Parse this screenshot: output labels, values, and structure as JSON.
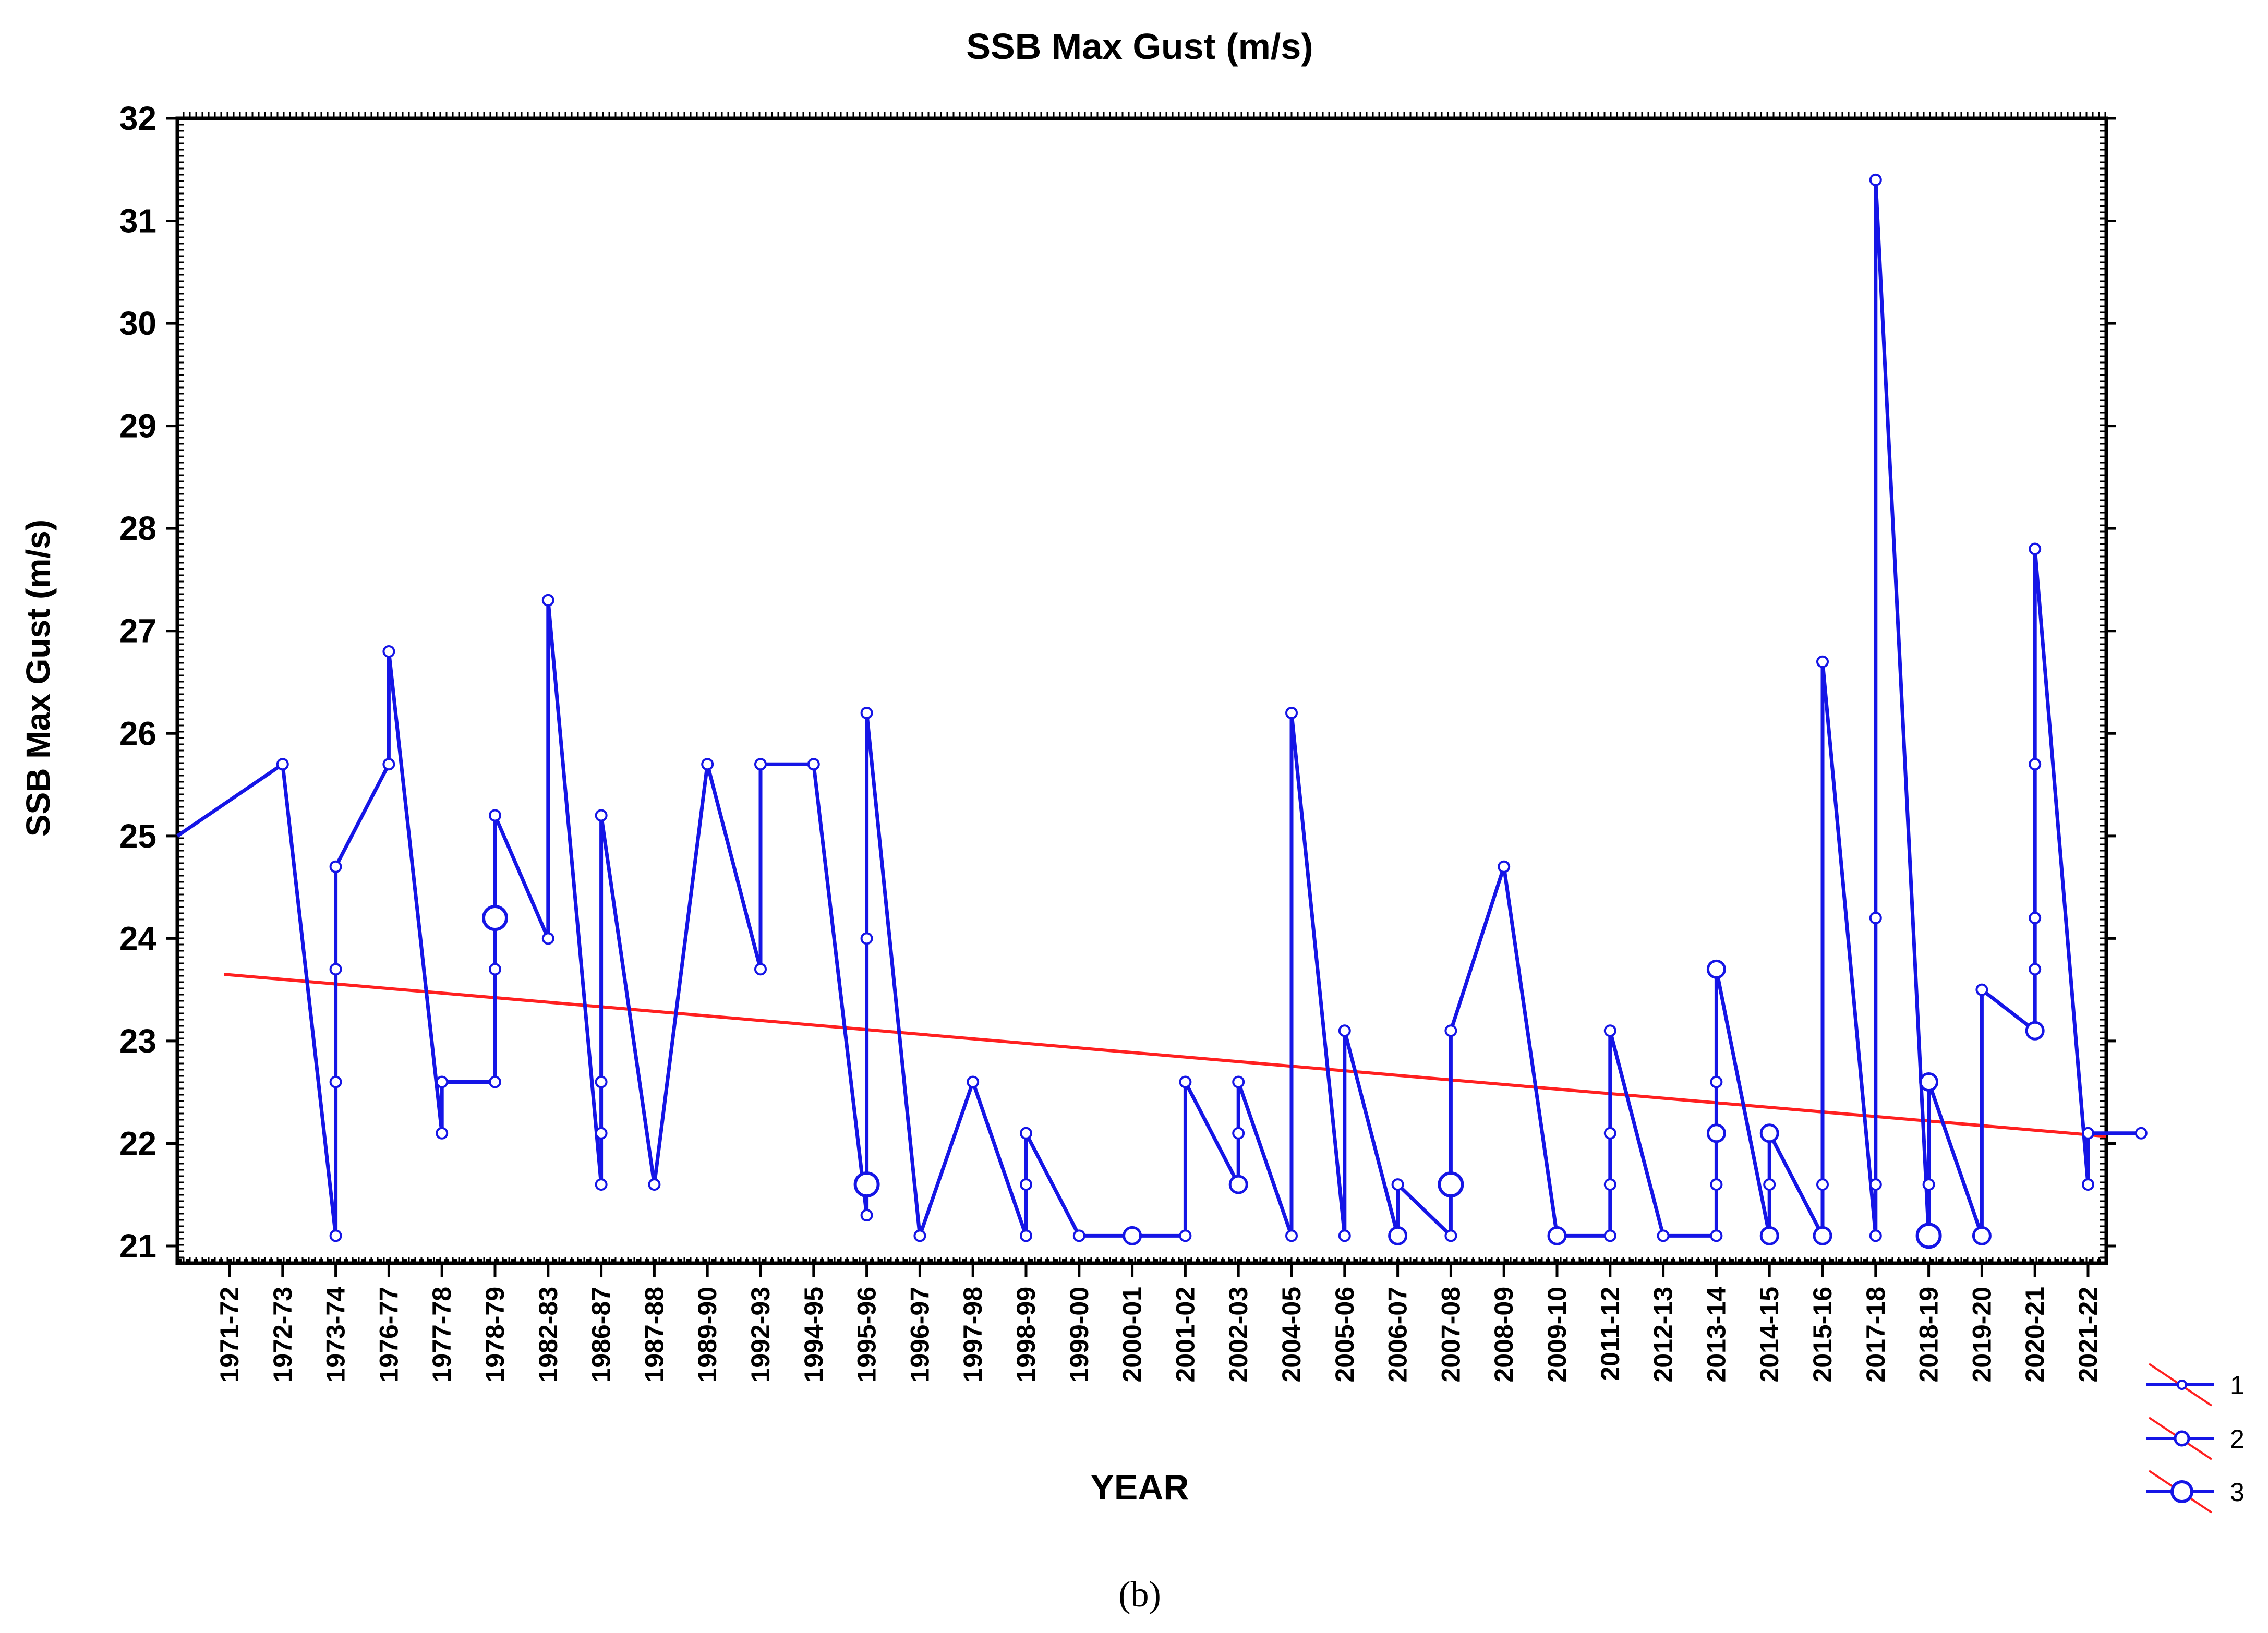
{
  "chart_data": {
    "type": "line",
    "title": "SSB Max Gust (m/s)",
    "xlabel": "YEAR",
    "ylabel": "SSB Max Gust (m/s)",
    "ylim": [
      21,
      32
    ],
    "yticks": [
      21,
      22,
      23,
      24,
      25,
      26,
      27,
      28,
      29,
      30,
      31,
      32
    ],
    "categories": [
      "1971-72",
      "1972-73",
      "1973-74",
      "1976-77",
      "1977-78",
      "1978-79",
      "1982-83",
      "1986-87",
      "1987-88",
      "1989-90",
      "1992-93",
      "1994-95",
      "1995-96",
      "1996-97",
      "1997-98",
      "1998-99",
      "1999-00",
      "2000-01",
      "2001-02",
      "2002-03",
      "2004-05",
      "2005-06",
      "2006-07",
      "2007-08",
      "2008-09",
      "2009-10",
      "2011-12",
      "2012-13",
      "2013-14",
      "2014-15",
      "2015-16",
      "2017-18",
      "2018-19",
      "2019-20",
      "2020-21",
      "2021-22"
    ],
    "series": [
      {
        "name": "SSB Max Gust",
        "color": "#1515e6",
        "points": [
          {
            "x": 0,
            "y": 25.0
          },
          {
            "x": 1,
            "y": 25.7
          },
          {
            "x": 2,
            "y": 21.1
          },
          {
            "x": 2,
            "y": 22.6
          },
          {
            "x": 2,
            "y": 23.7
          },
          {
            "x": 2,
            "y": 24.7
          },
          {
            "x": 3,
            "y": 25.7
          },
          {
            "x": 3,
            "y": 26.8
          },
          {
            "x": 4,
            "y": 22.1
          },
          {
            "x": 4,
            "y": 22.6
          },
          {
            "x": 5,
            "y": 22.6
          },
          {
            "x": 5,
            "y": 23.7
          },
          {
            "x": 5,
            "y": 24.2,
            "n": 3
          },
          {
            "x": 5,
            "y": 25.2
          },
          {
            "x": 6,
            "y": 24.0
          },
          {
            "x": 6,
            "y": 27.3
          },
          {
            "x": 7,
            "y": 21.6
          },
          {
            "x": 7,
            "y": 22.1
          },
          {
            "x": 7,
            "y": 22.6
          },
          {
            "x": 7,
            "y": 25.2
          },
          {
            "x": 8,
            "y": 21.6
          },
          {
            "x": 9,
            "y": 25.7
          },
          {
            "x": 10,
            "y": 23.7
          },
          {
            "x": 10,
            "y": 25.7
          },
          {
            "x": 11,
            "y": 25.7
          },
          {
            "x": 12,
            "y": 21.3
          },
          {
            "x": 12,
            "y": 21.6,
            "n": 3
          },
          {
            "x": 12,
            "y": 24.0
          },
          {
            "x": 12,
            "y": 26.2
          },
          {
            "x": 13,
            "y": 21.1
          },
          {
            "x": 14,
            "y": 22.6
          },
          {
            "x": 15,
            "y": 21.1
          },
          {
            "x": 15,
            "y": 21.6
          },
          {
            "x": 15,
            "y": 22.1
          },
          {
            "x": 16,
            "y": 21.1
          },
          {
            "x": 17,
            "y": 21.1,
            "n": 2
          },
          {
            "x": 18,
            "y": 21.1
          },
          {
            "x": 18,
            "y": 22.6
          },
          {
            "x": 19,
            "y": 21.6,
            "n": 2
          },
          {
            "x": 19,
            "y": 22.1
          },
          {
            "x": 19,
            "y": 22.6
          },
          {
            "x": 20,
            "y": 21.1
          },
          {
            "x": 20,
            "y": 26.2
          },
          {
            "x": 21,
            "y": 21.1
          },
          {
            "x": 21,
            "y": 23.1
          },
          {
            "x": 22,
            "y": 21.1,
            "n": 2
          },
          {
            "x": 22,
            "y": 21.6
          },
          {
            "x": 23,
            "y": 21.1
          },
          {
            "x": 23,
            "y": 21.6,
            "n": 3
          },
          {
            "x": 23,
            "y": 23.1
          },
          {
            "x": 24,
            "y": 24.7
          },
          {
            "x": 25,
            "y": 21.1,
            "n": 2
          },
          {
            "x": 26,
            "y": 21.1
          },
          {
            "x": 26,
            "y": 21.6
          },
          {
            "x": 26,
            "y": 22.1
          },
          {
            "x": 26,
            "y": 23.1
          },
          {
            "x": 27,
            "y": 21.1
          },
          {
            "x": 28,
            "y": 21.1
          },
          {
            "x": 28,
            "y": 21.6
          },
          {
            "x": 28,
            "y": 22.1,
            "n": 2
          },
          {
            "x": 28,
            "y": 22.6
          },
          {
            "x": 28,
            "y": 23.7,
            "n": 2
          },
          {
            "x": 29,
            "y": 21.1,
            "n": 2
          },
          {
            "x": 29,
            "y": 21.6
          },
          {
            "x": 29,
            "y": 22.1,
            "n": 2
          },
          {
            "x": 30,
            "y": 21.1,
            "n": 2
          },
          {
            "x": 30,
            "y": 21.6
          },
          {
            "x": 30,
            "y": 26.7
          },
          {
            "x": 31,
            "y": 21.1
          },
          {
            "x": 31,
            "y": 21.6
          },
          {
            "x": 31,
            "y": 24.2
          },
          {
            "x": 31,
            "y": 31.4
          },
          {
            "x": 32,
            "y": 21.1,
            "n": 3
          },
          {
            "x": 32,
            "y": 21.6
          },
          {
            "x": 32,
            "y": 22.6,
            "n": 2
          },
          {
            "x": 33,
            "y": 21.1,
            "n": 2
          },
          {
            "x": 33,
            "y": 23.5
          },
          {
            "x": 34,
            "y": 23.1,
            "n": 2
          },
          {
            "x": 34,
            "y": 23.7
          },
          {
            "x": 34,
            "y": 24.2
          },
          {
            "x": 34,
            "y": 25.7
          },
          {
            "x": 34,
            "y": 27.8
          },
          {
            "x": 35,
            "y": 21.6
          },
          {
            "x": 35,
            "y": 22.1
          },
          {
            "x": 36,
            "y": 22.1
          }
        ]
      }
    ],
    "trend": {
      "name": "linear trend",
      "color": "#ff2020",
      "x": [
        -0.1,
        36
      ],
      "y": [
        23.65,
        22.08
      ]
    },
    "legend": {
      "position": "bottom-right",
      "entries": [
        "1",
        "2",
        "3"
      ],
      "description": "marker size = number of observations"
    },
    "caption": "(b)"
  }
}
